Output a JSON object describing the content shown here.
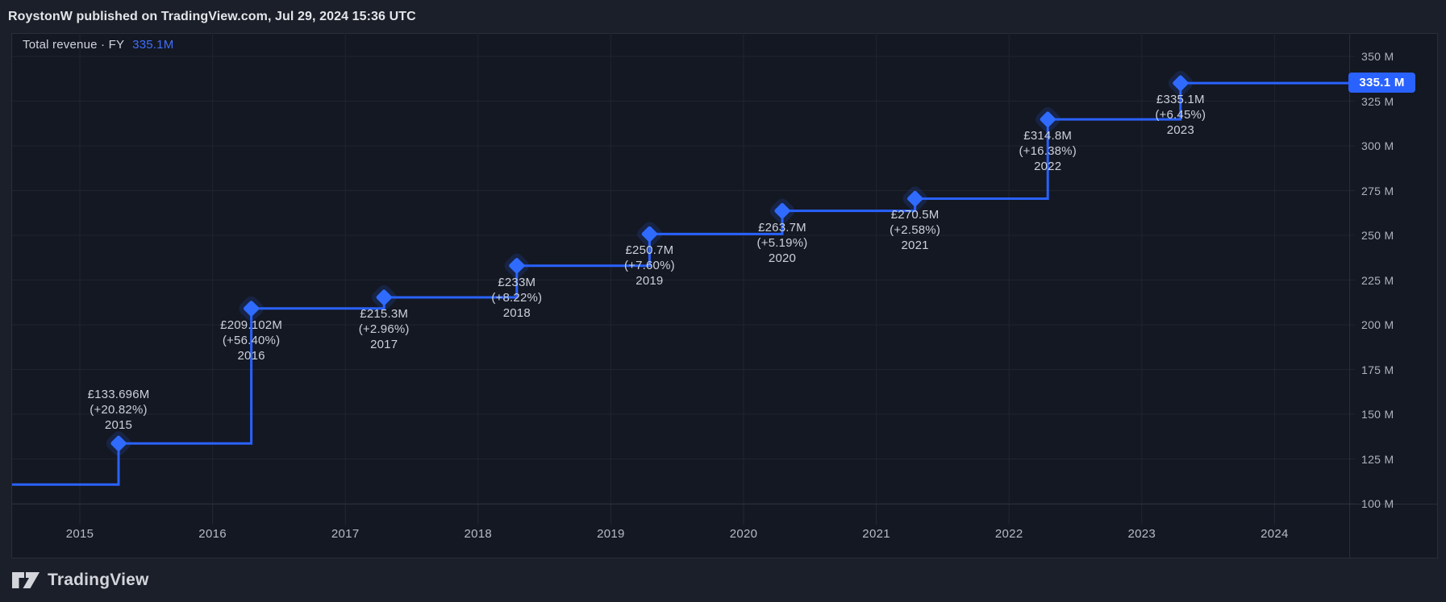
{
  "header": {
    "title": "RoystonW published on TradingView.com, Jul 29, 2024 15:36 UTC"
  },
  "legend": {
    "series": "Total revenue · FY",
    "value": "335.1M"
  },
  "price_badge": "335.1 M",
  "footer": {
    "brand": "TradingView"
  },
  "colors": {
    "accent": "#2962ff",
    "marker": "#2f6bff",
    "badge": "#2962ff",
    "pane_background": "#141822",
    "page_background": "#1b1f29",
    "grid": "#1f2430",
    "border": "#2a2e39",
    "label_text": "#ccd0da",
    "axis_text": "#aeb2bc"
  },
  "chart_data": {
    "type": "line",
    "subtype": "step-line-with-markers",
    "title": "Total revenue · FY",
    "currency": "£",
    "legend_position": "top-left",
    "grid": true,
    "baseline_m": 110.7,
    "points": [
      {
        "year": "2015",
        "value_label": "£133.696M",
        "change_label": "(+20.82%)",
        "value_m": 133.696,
        "label_position": "above"
      },
      {
        "year": "2016",
        "value_label": "£209.102M",
        "change_label": "(+56.40%)",
        "value_m": 209.102,
        "label_position": "below"
      },
      {
        "year": "2017",
        "value_label": "£215.3M",
        "change_label": "(+2.96%)",
        "value_m": 215.3,
        "label_position": "below"
      },
      {
        "year": "2018",
        "value_label": "£233M",
        "change_label": "(+8.22%)",
        "value_m": 233.0,
        "label_position": "below"
      },
      {
        "year": "2019",
        "value_label": "£250.7M",
        "change_label": "(+7.60%)",
        "value_m": 250.7,
        "label_position": "below"
      },
      {
        "year": "2020",
        "value_label": "£263.7M",
        "change_label": "(+5.19%)",
        "value_m": 263.7,
        "label_position": "below"
      },
      {
        "year": "2021",
        "value_label": "£270.5M",
        "change_label": "(+2.58%)",
        "value_m": 270.5,
        "label_position": "below"
      },
      {
        "year": "2022",
        "value_label": "£314.8M",
        "change_label": "(+16.38%)",
        "value_m": 314.8,
        "label_position": "below"
      },
      {
        "year": "2023",
        "value_label": "£335.1M",
        "change_label": "(+6.45%)",
        "value_m": 335.1,
        "label_position": "below"
      }
    ],
    "y_axis": {
      "unit": "M",
      "ticks_m": [
        350,
        325,
        300,
        275,
        250,
        225,
        200,
        175,
        150,
        125,
        100
      ],
      "tick_labels": [
        "350 M",
        "325 M",
        "300 M",
        "275 M",
        "250 M",
        "225 M",
        "200 M",
        "175 M",
        "150 M",
        "125 M",
        "100 M"
      ]
    },
    "x_axis": {
      "tick_labels": [
        "2015",
        "2016",
        "2017",
        "2018",
        "2019",
        "2020",
        "2021",
        "2022",
        "2023",
        "2024"
      ]
    },
    "last_value_label": "335.1 M"
  }
}
